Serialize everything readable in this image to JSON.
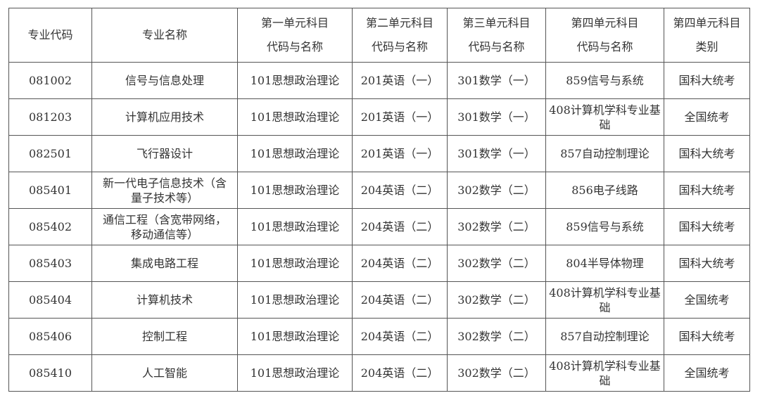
{
  "table": {
    "headers": [
      [
        "专业代码"
      ],
      [
        "专业名称"
      ],
      [
        "第一单元科目",
        "代码与名称"
      ],
      [
        "第二单元科目",
        "代码与名称"
      ],
      [
        "第三单元科目",
        "代码与名称"
      ],
      [
        "第四单元科目",
        "代码与名称"
      ],
      [
        "第四单元科目",
        "类别"
      ]
    ],
    "rows": [
      [
        "081002",
        "信号与信息处理",
        "101思想政治理论",
        "201英语（一）",
        "301数学（一）",
        "859信号与系统",
        "国科大统考"
      ],
      [
        "081203",
        "计算机应用技术",
        "101思想政治理论",
        "201英语（一）",
        "301数学（一）",
        "408计算机学科专业基础",
        "全国统考"
      ],
      [
        "082501",
        "飞行器设计",
        "101思想政治理论",
        "201英语（一）",
        "301数学（一）",
        "857自动控制理论",
        "国科大统考"
      ],
      [
        "085401",
        "新一代电子信息技术（含量子技术等）",
        "101思想政治理论",
        "204英语（二）",
        "302数学（二）",
        "856电子线路",
        "国科大统考"
      ],
      [
        "085402",
        "通信工程（含宽带网络，移动通信等）",
        "101思想政治理论",
        "204英语（二）",
        "302数学（二）",
        "859信号与系统",
        "国科大统考"
      ],
      [
        "085403",
        "集成电路工程",
        "101思想政治理论",
        "204英语（二）",
        "302数学（二）",
        "804半导体物理",
        "国科大统考"
      ],
      [
        "085404",
        "计算机技术",
        "101思想政治理论",
        "204英语（二）",
        "302数学（二）",
        "408计算机学科专业基础",
        "全国统考"
      ],
      [
        "085406",
        "控制工程",
        "101思想政治理论",
        "204英语（二）",
        "302数学（二）",
        "857自动控制理论",
        "国科大统考"
      ],
      [
        "085410",
        "人工智能",
        "101思想政治理论",
        "204英语（二）",
        "302数学（二）",
        "408计算机学科专业基础",
        "全国统考"
      ]
    ]
  }
}
